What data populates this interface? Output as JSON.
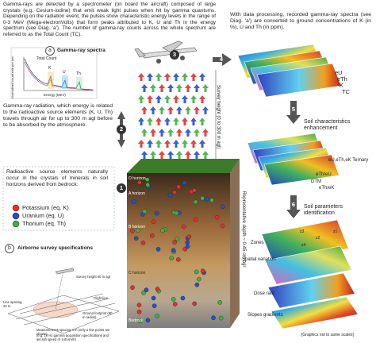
{
  "intro": "Gamma-rays are detected by a spectrometer (on board the aircraft) composed of large crystals (e.g. Cesium-iodine) that emit weak light pulses when hit by gamma quantums. Depending on the radiation event, the pulses show characteristic energy levels in the range of 0-3 MeV (Mega-electronVolts) that form peaks attributed to K, U and Th in the energy spectrum (see Diag. 'a'). The number of gamma-ray counts across the whole spectrum are referred to as the Total Count (TC).",
  "spectra": {
    "label": "a",
    "title": "Gamma-ray spectra",
    "total_count": "Total Count",
    "peaks": [
      "K",
      "U",
      "Th"
    ],
    "x_axis": "Energy (MeV)",
    "y_axis": "Normalised count rate per sec"
  },
  "radiation": {
    "step": "2",
    "text": "Gamma-ray radiation, which energy is related to the radioactive source elements (K, U, Th) travels through air for up to 300 m agl before to be absorbed by the atmosphere."
  },
  "sources": {
    "step": "1",
    "text": "Radioactive source elements naturally occur in the crystals of minerals in soil horizons derived from bedrock:",
    "legend": [
      "Potassium (eq. K)",
      "Uranium (eq. U)",
      "Thorium (eq. Th)"
    ]
  },
  "survey": {
    "label": "b",
    "title": "Airborne survey specifications",
    "notes": [
      "Survey height 60 m agl",
      "Flight line",
      "Line spacing 20 m",
      "Ground footprint (90 m radius)",
      "Measurements spacing 4 m (only a few points are shown)",
      "(e.g. 10 Hz gamma acquisition specifications and aircraft speed of 140 km/h)"
    ]
  },
  "aircraft_step": "3",
  "processing_step": "4",
  "survey_height": "Survey height (0 to 300 m agl)",
  "soil": {
    "horizons": [
      "O horizon",
      "A horizon",
      "B horizon",
      "C horizon",
      "Bedrock"
    ],
    "depth": "Representative depth ~ 0-45 cm bgl"
  },
  "processing": {
    "text": "With data processing, recorded gamma-ray spectra (see Diag. 'a') are converted to ground concentrations of K (in %), U and Th (in ppm).",
    "layers": [
      "eU",
      "eTh",
      "K",
      "TC"
    ]
  },
  "enhancement": {
    "step": "5",
    "title": "Soil characteristics enhancement",
    "layers": [
      "eU,eTh,eK Ternary",
      "eTh/eU",
      "DTM",
      "eTh/eK"
    ]
  },
  "identification": {
    "step": "6",
    "title": "Soil parameters identification",
    "layers": [
      "Zones",
      "Spatial variation",
      "Dose rate",
      "Slopes gradients"
    ],
    "zones": [
      "z1",
      "z2",
      "z3",
      "z4"
    ]
  },
  "footnote": "[Graphics not to same scales]"
}
